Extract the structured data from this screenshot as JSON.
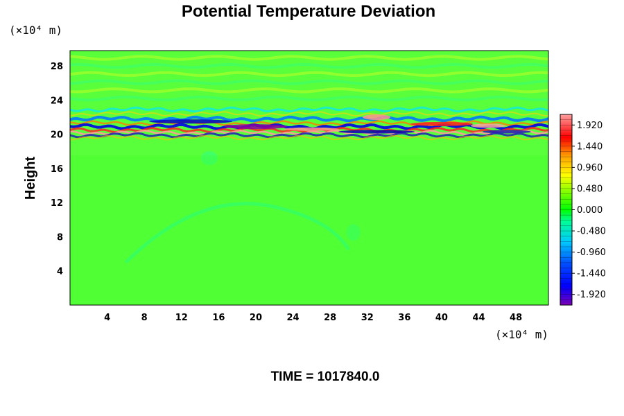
{
  "chart_data": {
    "type": "heatmap",
    "title": "Potential Temperature Deviation",
    "ylabel": "Height",
    "x_unit": "(×10⁴ m)",
    "y_unit": "(×10⁴ m)",
    "xlim": [
      0,
      51.5
    ],
    "ylim": [
      0,
      29.8
    ],
    "x_ticks": [
      "4",
      "8",
      "12",
      "16",
      "20",
      "24",
      "28",
      "32",
      "36",
      "40",
      "44",
      "48"
    ],
    "y_ticks": [
      "4",
      "8",
      "12",
      "16",
      "20",
      "24",
      "28"
    ],
    "colorbar": {
      "min": -2.16,
      "max": 2.16,
      "labels": [
        "1.920",
        "1.440",
        "0.960",
        "0.480",
        "0.000",
        "-0.480",
        "-0.960",
        "-1.440",
        "-1.920"
      ],
      "colors": [
        "#ff9999",
        "#ff0000",
        "#ff8c00",
        "#ffd200",
        "#b4ff00",
        "#00ff00",
        "#00ffb4",
        "#00b4ff",
        "#0000ff",
        "#8c00c8"
      ]
    },
    "background_value": 0.1,
    "features": [
      {
        "name": "tropopause-layer",
        "description": "strong positive/negative banding near height 20-23",
        "y_range": [
          19.5,
          23.0
        ]
      },
      {
        "name": "upper-waves",
        "description": "weak wave pattern above 23",
        "y_range": [
          23.0,
          29.8
        ]
      },
      {
        "name": "lower-arc",
        "description": "faint cyan arc structure between heights 4 and 13",
        "x_range": [
          6,
          32
        ]
      }
    ]
  },
  "footer": {
    "time_label": "TIME = 1017840.0"
  }
}
